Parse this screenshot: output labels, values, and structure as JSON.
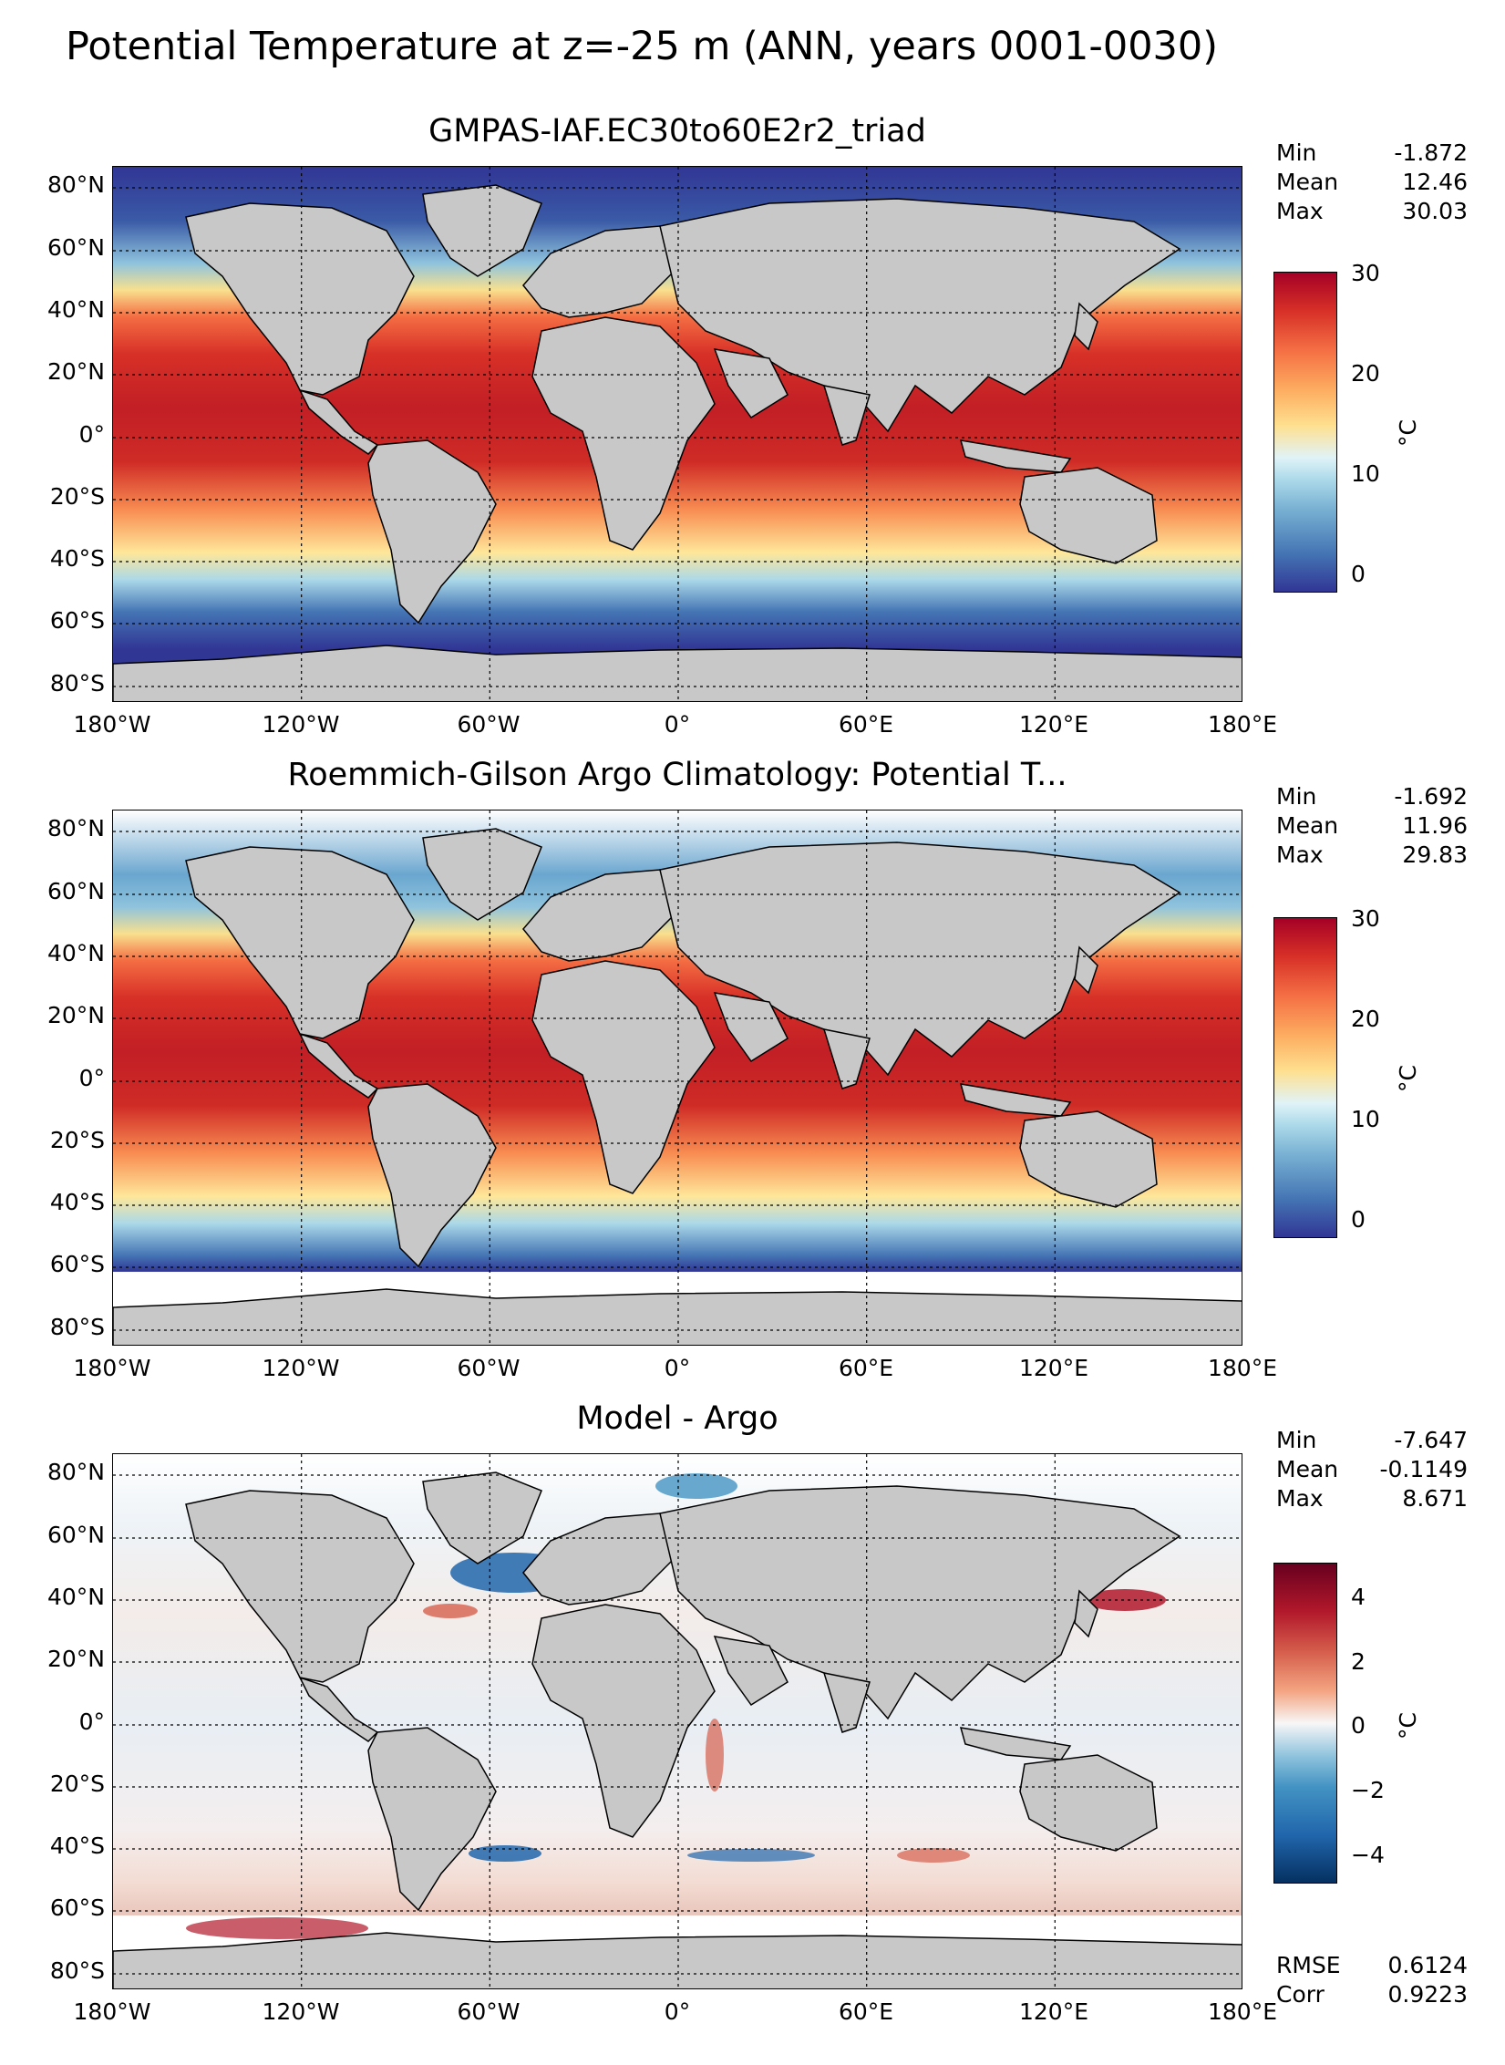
{
  "figure": {
    "title": "Potential Temperature at z=-25 m (ANN, years 0001-0030)"
  },
  "axes": {
    "lat_ticks": [
      "80°N",
      "60°N",
      "40°N",
      "20°N",
      "0°",
      "20°S",
      "40°S",
      "60°S",
      "80°S"
    ],
    "lon_ticks": [
      "180°W",
      "120°W",
      "60°W",
      "0°",
      "60°E",
      "120°E",
      "180°E"
    ]
  },
  "panels": [
    {
      "title": "GMPAS-IAF.EC30to60E2r2_triad",
      "stats": {
        "min_label": "Min",
        "min": "-1.872",
        "mean_label": "Mean",
        "mean": "12.46",
        "max_label": "Max",
        "max": "30.03"
      },
      "colorbar": {
        "ticks": [
          "30",
          "20",
          "10",
          "0"
        ],
        "unit": "°C",
        "range": [
          -2,
          30
        ],
        "palette": "RdYlBu_r"
      }
    },
    {
      "title": "Roemmich-Gilson Argo Climatology: Potential T...",
      "stats": {
        "min_label": "Min",
        "min": "-1.692",
        "mean_label": "Mean",
        "mean": "11.96",
        "max_label": "Max",
        "max": "29.83"
      },
      "colorbar": {
        "ticks": [
          "30",
          "20",
          "10",
          "0"
        ],
        "unit": "°C",
        "range": [
          -2,
          30
        ],
        "palette": "RdYlBu_r"
      }
    },
    {
      "title": "Model - Argo",
      "stats": {
        "min_label": "Min",
        "min": "-7.647",
        "mean_label": "Mean",
        "mean": "-0.1149",
        "max_label": "Max",
        "max": "8.671"
      },
      "colorbar": {
        "ticks": [
          "4",
          "2",
          "0",
          "−2",
          "−4"
        ],
        "unit": "°C",
        "range": [
          -5,
          5
        ],
        "palette": "RdBu_r"
      },
      "errors": {
        "rmse_label": "RMSE",
        "rmse": "0.6124",
        "corr_label": "Corr",
        "corr": "0.9223"
      }
    }
  ],
  "colors": {
    "land": "#c8c8c8",
    "warm": "#b2182b",
    "cold": "#313695",
    "neutral": "#f4f4f4"
  }
}
